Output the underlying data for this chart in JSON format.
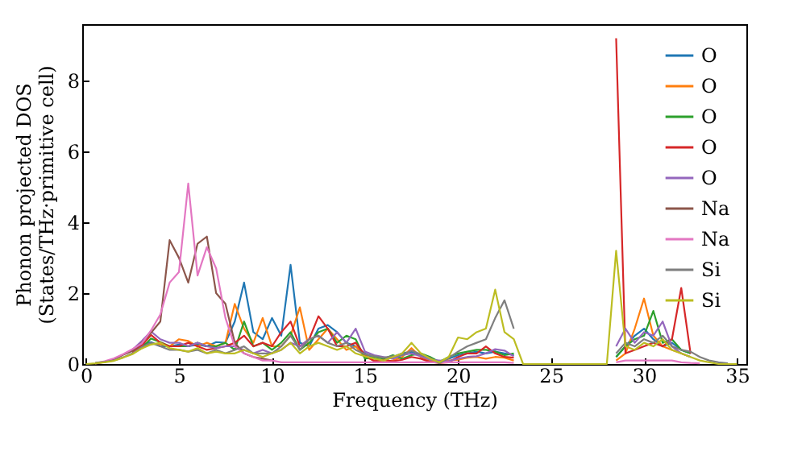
{
  "chart_data": {
    "type": "line",
    "xlabel": "Frequency (THz)",
    "ylabel": "Phonon projected DOS\n(States/THz·primitive cell)",
    "x": [
      0,
      0.5,
      1,
      1.5,
      2,
      2.5,
      3,
      3.5,
      4,
      4.5,
      5,
      5.5,
      6,
      6.5,
      7,
      7.5,
      8,
      8.5,
      9,
      9.5,
      10,
      10.5,
      11,
      11.5,
      12,
      12.5,
      13,
      13.5,
      14,
      14.5,
      15,
      15.5,
      16,
      16.5,
      17,
      17.5,
      18,
      18.5,
      19,
      19.5,
      20,
      20.5,
      21,
      21.5,
      22,
      22.5,
      23,
      23.5,
      24,
      24.5,
      25,
      25.5,
      26,
      26.5,
      27,
      27.5,
      28,
      28.5,
      29,
      29.5,
      30,
      30.5,
      31,
      31.5,
      32,
      32.5,
      33,
      33.5,
      34,
      34.5,
      35
    ],
    "series": [
      {
        "name": "O",
        "color": "#1f77b4",
        "values": [
          null,
          null,
          null,
          null,
          null,
          0.38,
          0.55,
          0.62,
          0.5,
          0.5,
          0.55,
          0.5,
          0.55,
          0.5,
          0.62,
          0.6,
          1.2,
          2.3,
          0.9,
          0.7,
          1.3,
          0.8,
          2.8,
          0.6,
          0.5,
          1.0,
          1.1,
          0.9,
          0.6,
          0.5,
          0.3,
          0.15,
          0.1,
          0.2,
          0.3,
          0.35,
          0.25,
          0.15,
          0.08,
          0.15,
          0.25,
          0.3,
          0.35,
          0.3,
          0.35,
          0.3,
          0.25,
          null,
          null,
          null,
          null,
          null,
          null,
          null,
          null,
          null,
          null,
          0.2,
          0.5,
          0.8,
          1.0,
          0.7,
          0.5,
          0.6,
          0.4,
          0.3,
          null,
          null,
          null,
          null,
          null
        ]
      },
      {
        "name": "O",
        "color": "#ff7f0e",
        "values": [
          null,
          null,
          null,
          null,
          null,
          0.33,
          0.48,
          0.58,
          0.56,
          0.5,
          0.7,
          0.65,
          0.5,
          0.6,
          0.5,
          0.6,
          1.7,
          1.0,
          0.6,
          1.3,
          0.5,
          0.5,
          0.8,
          1.6,
          0.4,
          0.7,
          1.0,
          0.7,
          0.4,
          0.5,
          0.2,
          0.1,
          0.05,
          0.1,
          0.2,
          0.45,
          0.2,
          0.1,
          0.04,
          0.1,
          0.12,
          0.18,
          0.2,
          0.15,
          0.2,
          0.18,
          0.1,
          null,
          null,
          null,
          null,
          null,
          null,
          null,
          null,
          null,
          null,
          0.1,
          0.3,
          1.0,
          1.85,
          0.8,
          0.5,
          0.4,
          0.3,
          0.2,
          null,
          null,
          null,
          null,
          null
        ]
      },
      {
        "name": "O",
        "color": "#2ca02c",
        "values": [
          null,
          null,
          null,
          null,
          null,
          0.3,
          0.45,
          0.72,
          0.62,
          0.5,
          0.5,
          0.5,
          0.6,
          0.5,
          0.5,
          0.6,
          0.4,
          1.2,
          0.5,
          0.6,
          0.4,
          0.6,
          0.9,
          0.4,
          0.6,
          0.9,
          1.0,
          0.6,
          0.8,
          0.7,
          0.15,
          0.2,
          0.15,
          0.25,
          0.15,
          0.25,
          0.3,
          0.2,
          0.06,
          0.2,
          0.3,
          0.35,
          0.4,
          0.4,
          0.35,
          0.25,
          0.3,
          null,
          null,
          null,
          null,
          null,
          null,
          null,
          null,
          null,
          null,
          0.2,
          0.5,
          0.7,
          0.8,
          1.5,
          0.6,
          0.7,
          0.4,
          0.3,
          null,
          null,
          null,
          null,
          null
        ]
      },
      {
        "name": "O",
        "color": "#d62728",
        "values": [
          null,
          null,
          null,
          null,
          null,
          0.32,
          0.52,
          0.82,
          0.6,
          0.5,
          0.5,
          0.6,
          0.5,
          0.4,
          0.45,
          0.5,
          0.6,
          0.8,
          0.5,
          0.6,
          0.5,
          0.9,
          1.2,
          0.5,
          0.7,
          1.35,
          1.0,
          0.5,
          0.5,
          0.6,
          0.25,
          0.08,
          0.12,
          0.08,
          0.12,
          0.2,
          0.15,
          0.06,
          0.03,
          0.05,
          0.2,
          0.3,
          0.3,
          0.5,
          0.3,
          0.2,
          0.18,
          null,
          null,
          null,
          null,
          null,
          null,
          null,
          null,
          null,
          null,
          9.2,
          0.3,
          0.4,
          0.5,
          0.6,
          0.5,
          0.7,
          2.15,
          0.3,
          null,
          null,
          null,
          null,
          null
        ]
      },
      {
        "name": "O",
        "color": "#9467bd",
        "values": [
          null,
          null,
          null,
          null,
          null,
          0.4,
          0.65,
          0.92,
          0.7,
          0.6,
          0.6,
          0.5,
          0.6,
          0.5,
          0.45,
          0.5,
          0.5,
          0.4,
          0.3,
          0.4,
          0.3,
          0.4,
          0.6,
          0.5,
          0.7,
          0.8,
          0.6,
          0.9,
          0.6,
          1.0,
          0.35,
          0.25,
          0.2,
          0.15,
          0.25,
          0.3,
          0.22,
          0.12,
          0.1,
          0.08,
          0.15,
          0.2,
          0.22,
          0.3,
          0.42,
          0.38,
          0.22,
          null,
          null,
          null,
          null,
          null,
          null,
          null,
          null,
          null,
          null,
          0.5,
          1.0,
          0.6,
          0.9,
          0.8,
          1.2,
          0.5,
          0.3,
          0.2,
          null,
          null,
          null,
          null,
          null
        ]
      },
      {
        "name": "Na",
        "color": "#8c564b",
        "values": [
          null,
          0.01,
          0.06,
          0.13,
          0.26,
          0.37,
          0.6,
          0.88,
          1.2,
          3.5,
          3.0,
          2.3,
          3.4,
          3.6,
          2.0,
          1.7,
          0.6,
          0.3,
          0.2,
          0.15,
          0.1,
          null,
          null,
          null,
          null,
          null,
          null,
          null,
          null,
          null,
          null,
          null,
          null,
          null,
          null,
          null,
          null,
          null,
          null,
          null,
          null,
          null,
          null,
          null,
          null,
          null,
          null,
          null,
          null,
          null,
          null,
          null,
          null,
          null,
          null,
          null,
          null,
          null,
          null,
          null,
          null,
          null,
          null,
          null,
          null,
          null,
          null,
          null,
          null,
          null,
          null
        ]
      },
      {
        "name": "Na",
        "color": "#e377c2",
        "values": [
          null,
          0.02,
          0.08,
          0.16,
          0.28,
          0.42,
          0.58,
          0.95,
          1.4,
          2.3,
          2.6,
          5.1,
          2.5,
          3.3,
          2.7,
          1.3,
          0.5,
          0.3,
          0.2,
          0.1,
          0.1,
          0.05,
          0.05,
          0.05,
          0.05,
          0.05,
          0.05,
          0.05,
          0.05,
          0.05,
          0.05,
          0.05,
          0.05,
          0.05,
          0.05,
          0.05,
          0.05,
          0.05,
          0.05,
          0.05,
          0.05,
          0.05,
          0.05,
          0.05,
          0.05,
          0.05,
          0.03,
          null,
          null,
          null,
          null,
          null,
          null,
          null,
          null,
          null,
          null,
          0.05,
          0.1,
          0.1,
          0.1,
          0.1,
          0.1,
          0.1,
          0.05,
          0.03,
          0.02,
          null,
          null,
          null,
          null
        ]
      },
      {
        "name": "Si",
        "color": "#7f7f7f",
        "values": [
          null,
          0.04,
          0.06,
          0.1,
          0.19,
          0.3,
          0.48,
          0.6,
          0.5,
          0.4,
          0.4,
          0.35,
          0.4,
          0.3,
          0.4,
          0.3,
          0.4,
          0.5,
          0.3,
          0.3,
          0.3,
          0.5,
          0.8,
          0.4,
          0.7,
          0.8,
          0.6,
          0.5,
          0.6,
          0.4,
          0.28,
          0.22,
          0.18,
          0.22,
          0.25,
          0.38,
          0.27,
          0.17,
          0.02,
          0.17,
          0.35,
          0.5,
          0.6,
          0.7,
          1.3,
          1.8,
          1.0,
          null,
          null,
          null,
          null,
          null,
          null,
          null,
          null,
          null,
          null,
          0.3,
          0.6,
          0.5,
          0.7,
          0.6,
          0.8,
          0.5,
          0.4,
          0.35,
          0.2,
          0.1,
          0.05,
          0.02,
          null
        ]
      },
      {
        "name": "Si",
        "color": "#bcbd22",
        "values": [
          0,
          0.02,
          0.05,
          0.09,
          0.18,
          0.28,
          0.44,
          0.55,
          0.6,
          0.45,
          0.4,
          0.35,
          0.45,
          0.3,
          0.35,
          0.3,
          0.3,
          0.4,
          0.3,
          0.2,
          0.3,
          0.4,
          0.6,
          0.3,
          0.5,
          0.6,
          0.5,
          0.4,
          0.5,
          0.3,
          0.22,
          0.15,
          0.1,
          0.2,
          0.3,
          0.6,
          0.3,
          0.15,
          0.05,
          0.2,
          0.75,
          0.7,
          0.9,
          1.0,
          2.1,
          0.9,
          0.7,
          0,
          0,
          0,
          0,
          0,
          0,
          0,
          0,
          0,
          0,
          3.2,
          0.5,
          0.4,
          0.6,
          0.5,
          0.7,
          0.4,
          0.3,
          0.2,
          0.1,
          0.05,
          0,
          0,
          0
        ]
      }
    ],
    "xlim": [
      -0.2,
      35.5
    ],
    "ylim": [
      0,
      9.6
    ],
    "xticks": [
      0,
      5,
      10,
      15,
      20,
      25,
      30,
      35
    ],
    "yticks": [
      0,
      2,
      4,
      6,
      8
    ],
    "grid": false,
    "legend": "top right",
    "marker": "none",
    "line_style": "solid"
  }
}
